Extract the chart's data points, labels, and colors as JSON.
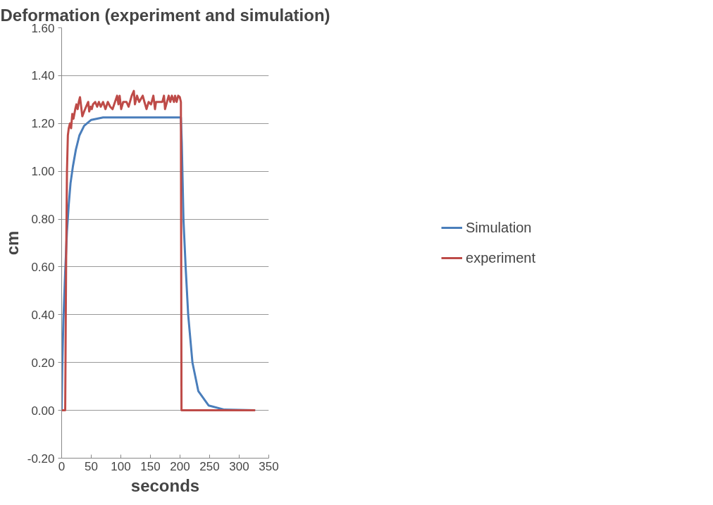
{
  "chart_data": {
    "type": "line",
    "title": "Deformation (experiment and simulation)",
    "xlabel": "seconds",
    "ylabel": "cm",
    "xlim": [
      0,
      350
    ],
    "xticks": [
      0,
      50,
      100,
      150,
      200,
      250,
      300,
      350
    ],
    "ylim": [
      -0.2,
      1.6
    ],
    "yticks": [
      {
        "value": -0.2,
        "label": "-0.20"
      },
      {
        "value": 0,
        "label": "0.00"
      },
      {
        "value": 0.2,
        "label": "0.20"
      },
      {
        "value": 0.4,
        "label": "0.40"
      },
      {
        "value": 0.6,
        "label": "0.60"
      },
      {
        "value": 0.8,
        "label": "0.80"
      },
      {
        "value": 1.0,
        "label": "1.00"
      },
      {
        "value": 1.2,
        "label": "1.20"
      },
      {
        "value": 1.4,
        "label": "1.40"
      },
      {
        "value": 1.6,
        "label": "1.60"
      }
    ],
    "grid": "y",
    "legend": "right",
    "marker": "none",
    "line_style": "solid",
    "series": [
      {
        "name": "Simulation",
        "color": "#4a7ebb",
        "x": [
          0,
          1,
          3,
          6,
          9,
          12,
          15,
          19,
          24,
          30,
          38,
          50,
          70,
          201.5,
          203,
          205.8,
          209.5,
          213.8,
          221,
          231,
          248.5,
          275,
          327
        ],
        "values": [
          0,
          0.18,
          0.38,
          0.58,
          0.75,
          0.86,
          0.95,
          1.02,
          1.09,
          1.15,
          1.19,
          1.215,
          1.225,
          1.225,
          1.12,
          0.8,
          0.6,
          0.4,
          0.2,
          0.08,
          0.02,
          0.003,
          0
        ]
      },
      {
        "name": "experiment",
        "color": "#be4b48",
        "x": [
          0,
          6,
          7.5,
          9,
          10.5,
          12,
          14,
          16,
          18,
          20,
          23,
          25,
          27,
          29,
          31,
          33,
          34.9,
          38,
          41.3,
          44.9,
          46.6,
          49,
          51,
          53,
          56.7,
          60,
          62.9,
          66,
          70,
          74,
          78,
          82,
          86,
          93.7,
          96,
          98,
          100.6,
          104,
          109.6,
          113.1,
          118.4,
          122,
          123.8,
          127.4,
          131,
          137,
          139.9,
          143.4,
          147,
          151,
          155,
          157.7,
          159.5,
          165,
          170.2,
          172.9,
          174.7,
          178,
          180.9,
          183.6,
          186.3,
          189.8,
          191.6,
          194.3,
          197,
          199.6,
          201.5,
          202.5,
          327
        ],
        "values": [
          0,
          0,
          0.6,
          1.0,
          1.15,
          1.18,
          1.2,
          1.18,
          1.24,
          1.22,
          1.26,
          1.28,
          1.26,
          1.29,
          1.31,
          1.27,
          1.23,
          1.25,
          1.27,
          1.29,
          1.25,
          1.27,
          1.26,
          1.28,
          1.29,
          1.27,
          1.29,
          1.27,
          1.29,
          1.26,
          1.29,
          1.27,
          1.26,
          1.316,
          1.28,
          1.316,
          1.26,
          1.29,
          1.29,
          1.27,
          1.316,
          1.336,
          1.28,
          1.316,
          1.29,
          1.316,
          1.29,
          1.26,
          1.29,
          1.28,
          1.316,
          1.26,
          1.29,
          1.29,
          1.29,
          1.316,
          1.26,
          1.29,
          1.316,
          1.29,
          1.316,
          1.29,
          1.316,
          1.29,
          1.316,
          1.31,
          1.29,
          0,
          0
        ]
      }
    ]
  }
}
